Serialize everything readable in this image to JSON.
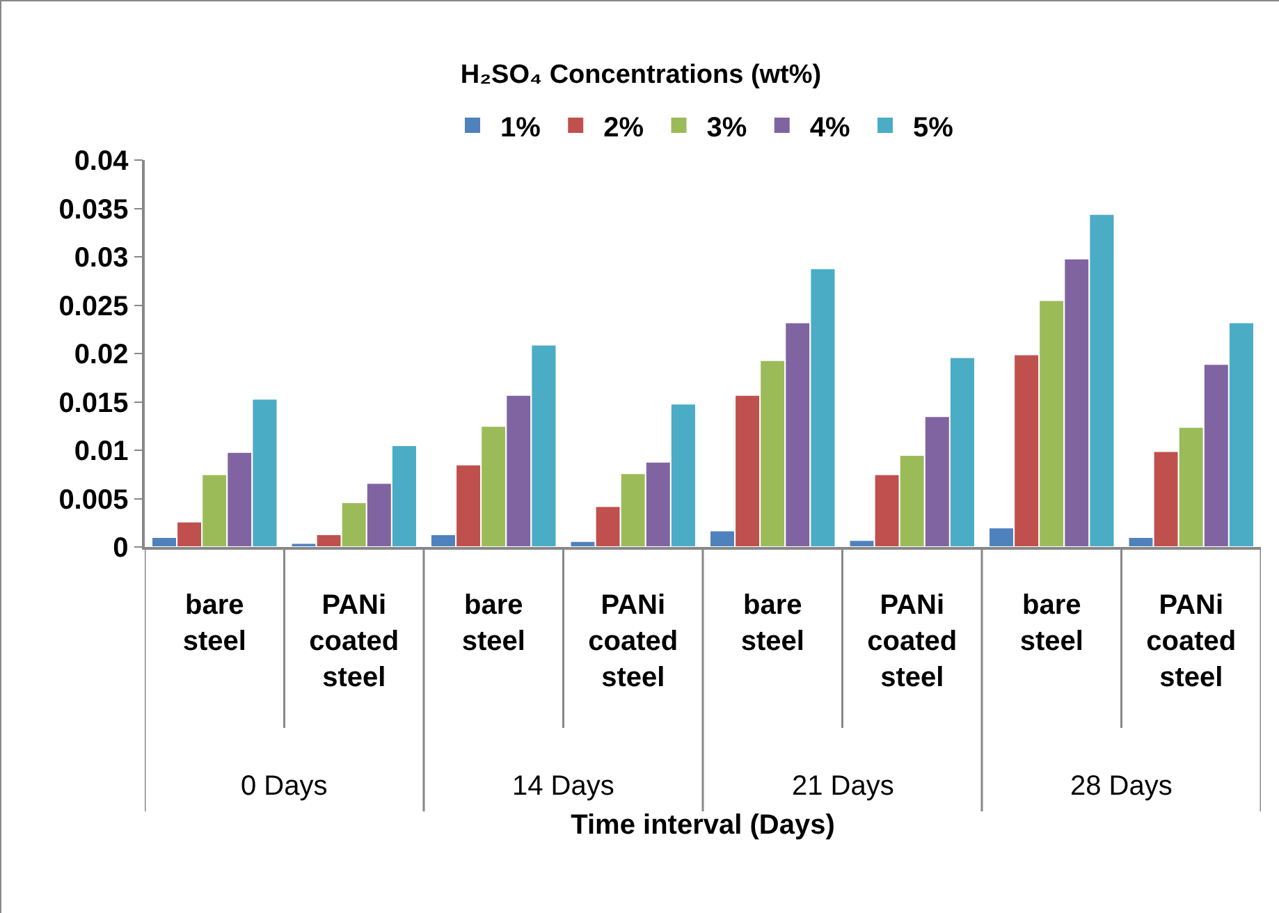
{
  "chart_data": {
    "type": "bar",
    "title": "H₂SO₄ Concentrations (wt%)",
    "xlabel": "Time interval (Days)",
    "categories": [
      "bare steel",
      "PANi coated steel",
      "bare steel",
      "PANi coated steel",
      "bare steel",
      "PANi coated steel",
      "bare steel",
      "PANi coated steel"
    ],
    "annotations": [
      "0 Days",
      "14 Days",
      "21 Days",
      "28 Days"
    ],
    "series": [
      {
        "name": "1%",
        "color": "#4f81bd",
        "values": [
          0.001,
          0.0004,
          0.0013,
          0.0006,
          0.0017,
          0.0007,
          0.002,
          0.001
        ]
      },
      {
        "name": "2%",
        "color": "#c0504d",
        "values": [
          0.0026,
          0.0013,
          0.0085,
          0.0042,
          0.0157,
          0.0075,
          0.0199,
          0.0099
        ]
      },
      {
        "name": "3%",
        "color": "#9bbb59",
        "values": [
          0.0075,
          0.0046,
          0.0125,
          0.0076,
          0.0193,
          0.0095,
          0.0255,
          0.0124
        ]
      },
      {
        "name": "4%",
        "color": "#8064a2",
        "values": [
          0.0098,
          0.0066,
          0.0157,
          0.0088,
          0.0232,
          0.0135,
          0.0298,
          0.0189
        ]
      },
      {
        "name": "5%",
        "color": "#4bacc6",
        "values": [
          0.0153,
          0.0105,
          0.0209,
          0.0148,
          0.0288,
          0.0196,
          0.0344,
          0.0232
        ]
      }
    ],
    "ylim": [
      0,
      0.04
    ],
    "yticks": [
      0,
      0.005,
      0.01,
      0.015,
      0.02,
      0.025,
      0.03,
      0.035,
      0.04
    ],
    "grid": false,
    "legend": "top"
  }
}
